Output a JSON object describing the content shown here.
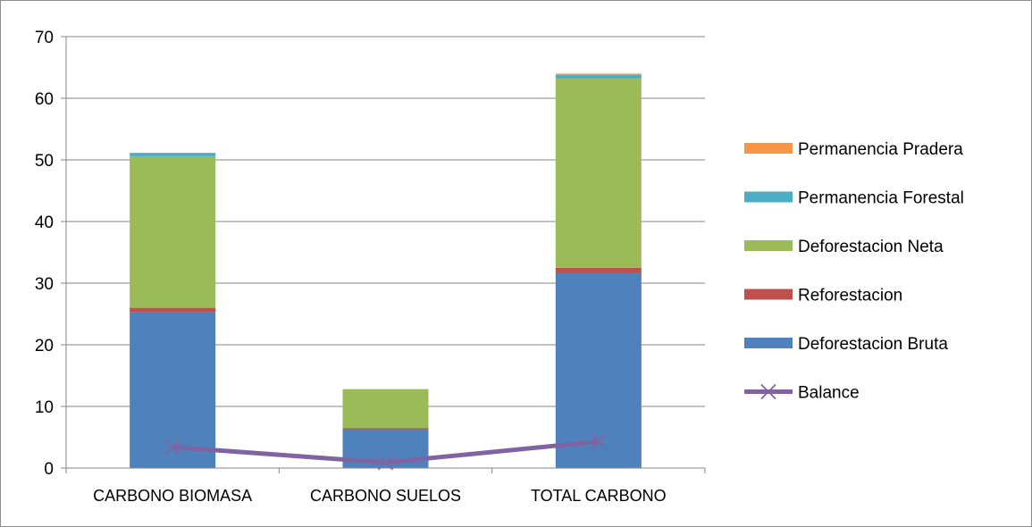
{
  "chart_data": {
    "type": "bar",
    "stacked": true,
    "title": "",
    "xlabel": "",
    "ylabel": "",
    "categories": [
      "CARBONO BIOMASA",
      "CARBONO SUELOS",
      "TOTAL CARBONO"
    ],
    "ylim": [
      0,
      70
    ],
    "yticks": [
      0,
      10,
      20,
      30,
      40,
      50,
      60,
      70
    ],
    "grid": true,
    "legend_position": "right",
    "series": [
      {
        "name": "Deforestacion Bruta",
        "kind": "bar",
        "color": "#4f81bd",
        "values": [
          25.3,
          6.3,
          31.6
        ]
      },
      {
        "name": "Reforestacion",
        "kind": "bar",
        "color": "#c0504d",
        "values": [
          0.7,
          0.2,
          0.9
        ]
      },
      {
        "name": "Deforestacion Neta",
        "kind": "bar",
        "color": "#9bbb59",
        "values": [
          24.6,
          6.3,
          30.7
        ]
      },
      {
        "name": "Permanencia Forestal",
        "kind": "bar",
        "color": "#4bacc6",
        "values": [
          0.5,
          0.0,
          0.6
        ]
      },
      {
        "name": "Permanencia Pradera",
        "kind": "bar",
        "color": "#f79646",
        "values": [
          0.05,
          0.0,
          0.2
        ]
      },
      {
        "name": "Balance",
        "kind": "line",
        "color": "#8064a2",
        "values": [
          3.4,
          0.9,
          4.3
        ]
      }
    ],
    "legend_order": [
      "Permanencia Pradera",
      "Permanencia Forestal",
      "Deforestacion Neta",
      "Reforestacion",
      "Deforestacion Bruta",
      "Balance"
    ]
  }
}
